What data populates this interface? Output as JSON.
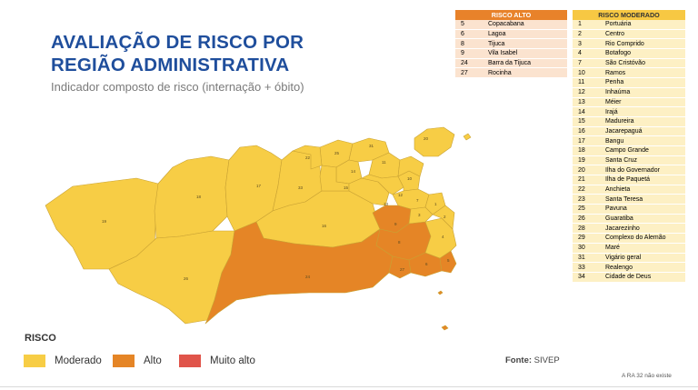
{
  "title_line1": "AVALIAÇÃO DE RISCO POR",
  "title_line2": "REGIÃO ADMINISTRATIVA",
  "subtitle": "Indicador composto de risco (internação + óbito)",
  "colors": {
    "moderado": "#f7cd45",
    "alto": "#e58526",
    "muito_alto": "#e0544a",
    "title": "#1f4e9c"
  },
  "risco_alto": {
    "header": "RISCO ALTO",
    "rows": [
      {
        "n": "5",
        "name": "Copacabana"
      },
      {
        "n": "6",
        "name": "Lagoa"
      },
      {
        "n": "8",
        "name": "Tijuca"
      },
      {
        "n": "9",
        "name": "Vila Isabel"
      },
      {
        "n": "24",
        "name": "Barra da Tijuca"
      },
      {
        "n": "27",
        "name": "Rocinha"
      }
    ]
  },
  "risco_moderado": {
    "header": "RISCO MODERADO",
    "rows": [
      {
        "n": "1",
        "name": "Portuária"
      },
      {
        "n": "2",
        "name": "Centro"
      },
      {
        "n": "3",
        "name": "Rio Comprido"
      },
      {
        "n": "4",
        "name": "Botafogo"
      },
      {
        "n": "7",
        "name": "São Cristóvão"
      },
      {
        "n": "10",
        "name": "Ramos"
      },
      {
        "n": "11",
        "name": "Penha"
      },
      {
        "n": "12",
        "name": "Inhaúma"
      },
      {
        "n": "13",
        "name": "Méier"
      },
      {
        "n": "14",
        "name": "Irajá"
      },
      {
        "n": "15",
        "name": "Madureira"
      },
      {
        "n": "16",
        "name": "Jacarepaguá"
      },
      {
        "n": "17",
        "name": "Bangu"
      },
      {
        "n": "18",
        "name": "Campo Grande"
      },
      {
        "n": "19",
        "name": "Santa Cruz"
      },
      {
        "n": "20",
        "name": "Ilha do Governador"
      },
      {
        "n": "21",
        "name": "Ilha de Paquetá"
      },
      {
        "n": "22",
        "name": "Anchieta"
      },
      {
        "n": "23",
        "name": "Santa Teresa"
      },
      {
        "n": "25",
        "name": "Pavuna"
      },
      {
        "n": "26",
        "name": "Guaratiba"
      },
      {
        "n": "28",
        "name": "Jacarezinho"
      },
      {
        "n": "29",
        "name": "Complexo do Alemão"
      },
      {
        "n": "30",
        "name": "Maré"
      },
      {
        "n": "31",
        "name": "Vigário geral"
      },
      {
        "n": "33",
        "name": "Realengo"
      },
      {
        "n": "34",
        "name": "Cidade de Deus"
      }
    ]
  },
  "legend": {
    "title": "RISCO",
    "items": [
      {
        "label": "Moderado"
      },
      {
        "label": "Alto"
      },
      {
        "label": "Muito alto"
      }
    ]
  },
  "source_label": "Fonte:",
  "source_value": "SIVEP",
  "note": "A RA 32 não existe",
  "map_labels": [
    "19",
    "18",
    "17",
    "26",
    "33",
    "16",
    "24",
    "25",
    "22",
    "31",
    "14",
    "11",
    "15",
    "13",
    "12",
    "10",
    "20",
    "9",
    "8",
    "6",
    "4",
    "5",
    "27",
    "1",
    "2",
    "3",
    "7"
  ]
}
